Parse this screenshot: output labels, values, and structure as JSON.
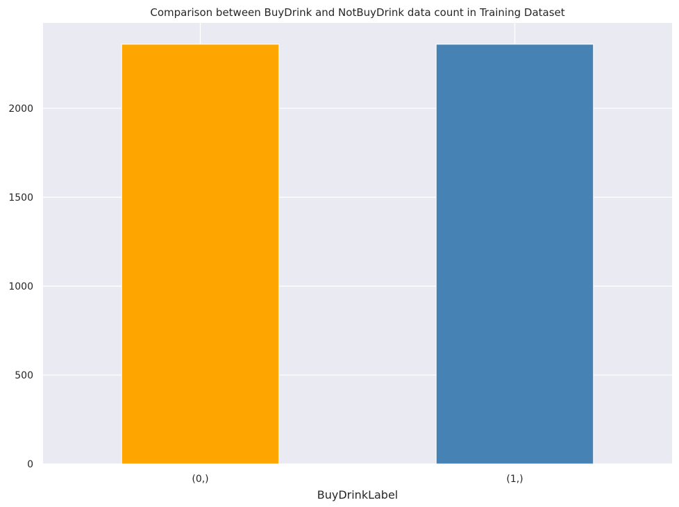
{
  "chart_data": {
    "type": "bar",
    "title": "Comparison between BuyDrink and NotBuyDrink data count in Training Dataset",
    "xlabel": "BuyDrinkLabel",
    "ylabel": "",
    "categories": [
      "(0,)",
      "(1,)"
    ],
    "values": [
      2360,
      2360
    ],
    "colors": [
      "#ffa500",
      "#4682b4"
    ],
    "ylim": [
      0,
      2480
    ],
    "yticks": [
      0,
      500,
      1000,
      1500,
      2000
    ],
    "grid": true,
    "background": "#eaeaf2",
    "grid_color": "#ffffff"
  }
}
